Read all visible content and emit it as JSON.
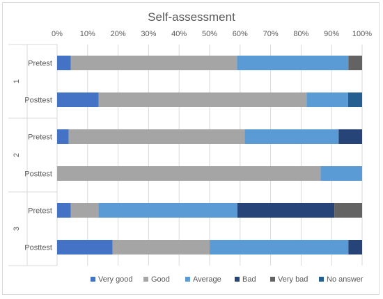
{
  "chart_data": {
    "type": "bar",
    "orientation": "horizontal",
    "stacked": "percent",
    "title": "Self-assessment",
    "xlim": [
      0,
      100
    ],
    "x_ticks": [
      "0%",
      "10%",
      "20%",
      "30%",
      "40%",
      "50%",
      "60%",
      "70%",
      "80%",
      "90%",
      "100%"
    ],
    "groups": [
      {
        "label": "1",
        "rows": [
          {
            "label": "Pretest",
            "values": [
              4.5,
              54.5,
              36.5,
              0,
              4.5,
              0
            ]
          },
          {
            "label": "Posttest",
            "values": [
              13.6,
              68.2,
              13.6,
              0,
              0,
              4.6
            ]
          }
        ]
      },
      {
        "label": "2",
        "rows": [
          {
            "label": "Pretest",
            "values": [
              3.8,
              57.7,
              30.8,
              7.7,
              0,
              0
            ]
          },
          {
            "label": "Posttest",
            "values": [
              0,
              86.4,
              13.6,
              0,
              0,
              0
            ]
          }
        ]
      },
      {
        "label": "3",
        "rows": [
          {
            "label": "Pretest",
            "values": [
              4.5,
              9.1,
              45.5,
              31.8,
              9.1,
              0
            ]
          },
          {
            "label": "Posttest",
            "values": [
              18.2,
              31.8,
              45.5,
              4.5,
              0,
              0
            ]
          }
        ]
      }
    ],
    "series": [
      {
        "name": "Very good",
        "color": "#4472c4"
      },
      {
        "name": "Good",
        "color": "#a5a5a5"
      },
      {
        "name": "Average",
        "color": "#5b9bd5"
      },
      {
        "name": "Bad",
        "color": "#264478"
      },
      {
        "name": "Very bad",
        "color": "#636363"
      },
      {
        "name": "No answer",
        "color": "#255e91"
      }
    ],
    "legend_position": "bottom",
    "grid": true
  }
}
